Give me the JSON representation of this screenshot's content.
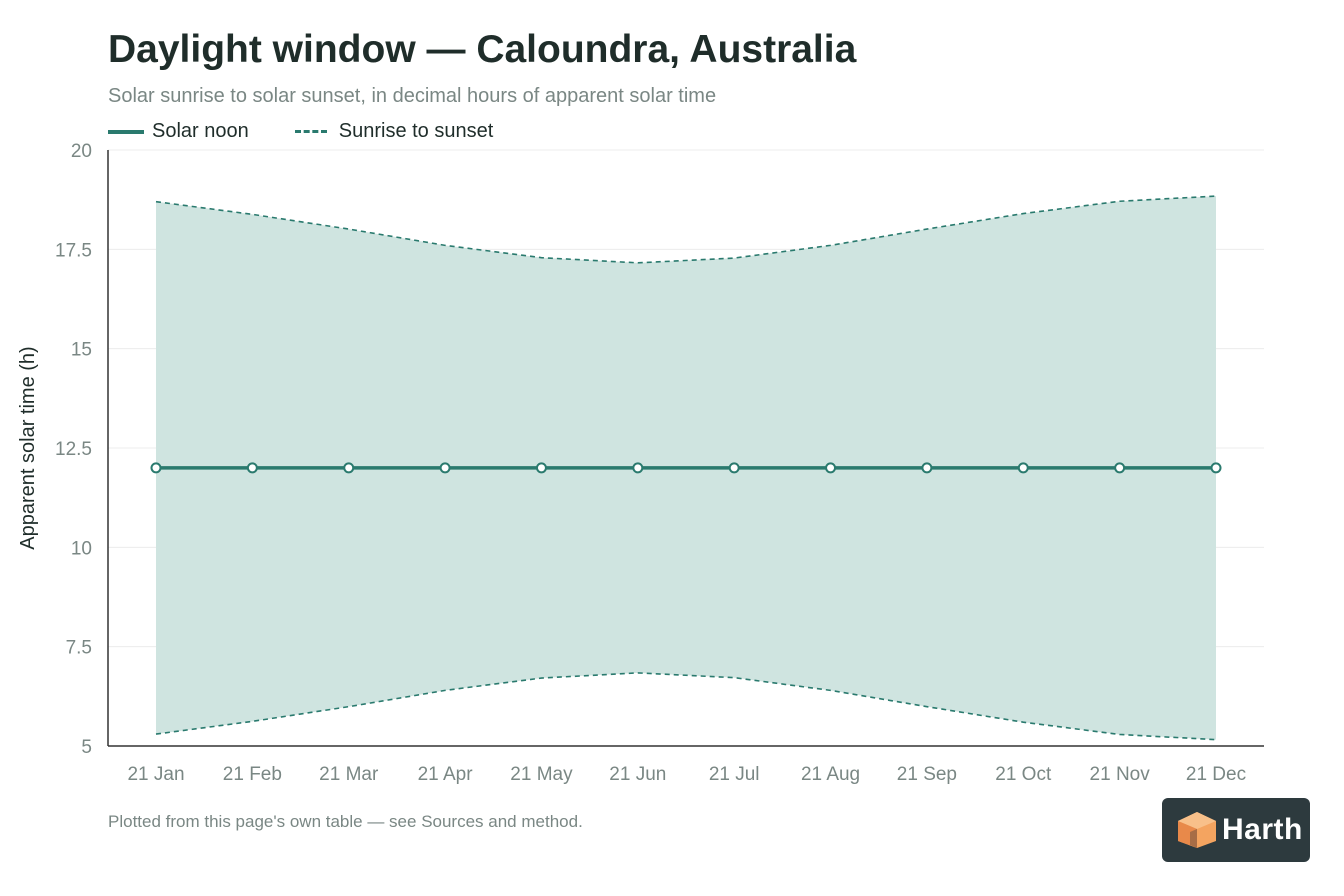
{
  "header": {
    "title": "Daylight window — Caloundra, Australia",
    "subtitle": "Solar sunrise to solar sunset, in decimal hours of apparent solar time"
  },
  "legend": {
    "noon_label": "Solar noon",
    "range_label": "Sunrise to sunset"
  },
  "footnote": "Plotted from this page's own table — see Sources and method.",
  "logo": {
    "text": "Harth",
    "icon": "cube-logo-icon"
  },
  "colors": {
    "line": "#2a7a6e",
    "fill": "#cfe4e0",
    "axis": "#333333",
    "grid": "#ececec",
    "tick_text": "#7a8784",
    "logo_bg": "#2d3a3e",
    "logo_orange": "#f4a460"
  },
  "chart_data": {
    "type": "area",
    "ylabel": "Apparent solar time (h)",
    "xlabel": "",
    "ylim": [
      5,
      20
    ],
    "yticks": [
      5,
      7.5,
      10,
      12.5,
      15,
      17.5,
      20
    ],
    "ytick_labels": [
      "5",
      "7.5",
      "10",
      "12.5",
      "15",
      "17.5",
      "20"
    ],
    "grid": true,
    "legend_position": "top-left",
    "categories": [
      "21 Jan",
      "21 Feb",
      "21 Mar",
      "21 Apr",
      "21 May",
      "21 Jun",
      "21 Jul",
      "21 Aug",
      "21 Sep",
      "21 Oct",
      "21 Nov",
      "21 Dec"
    ],
    "series": [
      {
        "name": "Solar noon",
        "style": "solid-markers",
        "values": [
          12,
          12,
          12,
          12,
          12,
          12,
          12,
          12,
          12,
          12,
          12,
          12
        ]
      },
      {
        "name": "Sunrise to sunset",
        "style": "dashed-band",
        "sunrise": [
          5.3,
          5.62,
          5.99,
          6.4,
          6.71,
          6.84,
          6.72,
          6.4,
          5.99,
          5.6,
          5.29,
          5.16
        ],
        "sunset": [
          18.7,
          18.38,
          18.01,
          17.6,
          17.29,
          17.16,
          17.28,
          17.6,
          18.01,
          18.4,
          18.71,
          18.84
        ]
      }
    ]
  }
}
